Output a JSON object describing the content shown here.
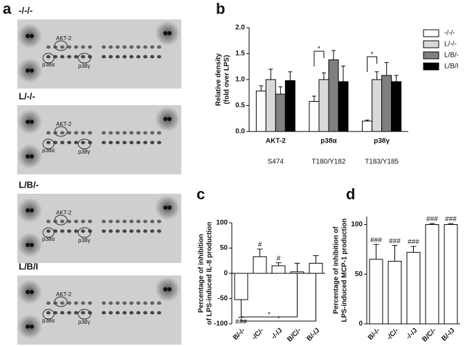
{
  "panels": [
    "a",
    "b",
    "c",
    "d"
  ],
  "blots": [
    {
      "title": "-/-/-",
      "labels": [
        "AKT-2",
        "p38α",
        "p38γ"
      ]
    },
    {
      "title": "L/-/-",
      "labels": [
        "AKT-2",
        "p38α",
        "p38γ"
      ]
    },
    {
      "title": "L/B/-",
      "labels": [
        "AKT-2",
        "p38α",
        "p38γ"
      ]
    },
    {
      "title": "L/B/I",
      "labels": [
        "AKT-2",
        "p38α",
        "p38γ"
      ]
    }
  ],
  "chart_data": [
    {
      "type": "bar",
      "ylabel": [
        "Relative density",
        "(fold over LPS)"
      ],
      "categories": [
        "AKT-2",
        "p38α",
        "p38γ"
      ],
      "sublabels": [
        "S474",
        "T180/Y182",
        "T183/Y185"
      ],
      "series": [
        {
          "name": "-/-/-",
          "color": "#ffffff",
          "values": [
            0.78,
            0.58,
            0.2
          ],
          "errors": [
            0.1,
            0.1,
            0.02
          ]
        },
        {
          "name": "L/-/-",
          "color": "#d9d9d9",
          "values": [
            1.0,
            1.0,
            1.0
          ],
          "errors": [
            0.2,
            0.13,
            0.15
          ]
        },
        {
          "name": "L/B/-",
          "color": "#808080",
          "values": [
            0.72,
            1.38,
            1.08
          ],
          "errors": [
            0.14,
            0.18,
            0.25
          ]
        },
        {
          "name": "L/B/I",
          "color": "#000000",
          "values": [
            0.98,
            0.96,
            0.96
          ],
          "errors": [
            0.17,
            0.3,
            0.12
          ]
        }
      ],
      "annotations": [
        "*",
        "*"
      ],
      "ylim": [
        0,
        2.0
      ],
      "yticks": [
        {
          "value": 0,
          "label": "0.0"
        },
        0.5,
        {
          "value": 1,
          "label": "1.0"
        },
        1.5,
        {
          "value": 2,
          "label": "2.0"
        }
      ]
    },
    {
      "type": "bar",
      "ylabel": [
        "Percentage of inhibition",
        "of LPS-induced IL-8 production"
      ],
      "categories": [
        "B/-/-",
        "-/C/-",
        "-/-/J",
        "B/C/-",
        "B/-/J"
      ],
      "values": [
        -52,
        33,
        15,
        3,
        20
      ],
      "errors": [
        35,
        15,
        6,
        17,
        15
      ],
      "color": "#ffffff",
      "significance": [
        "###",
        "#",
        "#",
        null,
        null
      ],
      "annotations": [
        "*",
        "*"
      ],
      "ylim": [
        -100,
        100
      ],
      "yticks": [
        -100,
        -50,
        0,
        50,
        100
      ]
    },
    {
      "type": "bar",
      "ylabel": [
        "Percentage of inhibition of",
        "LPS-induced MCP-1 production"
      ],
      "categories": [
        "B/-/-",
        "-/C/-",
        "-/-/J",
        "B/C/-",
        "B/-/J"
      ],
      "values": [
        65,
        63,
        72,
        100,
        100
      ],
      "errors": [
        15,
        16,
        6,
        1,
        1
      ],
      "color": "#ffffff",
      "significance": [
        "###",
        "###",
        "###",
        "###",
        "###"
      ],
      "ylim": [
        0,
        108
      ],
      "yticks": [
        0,
        50,
        100
      ]
    }
  ]
}
